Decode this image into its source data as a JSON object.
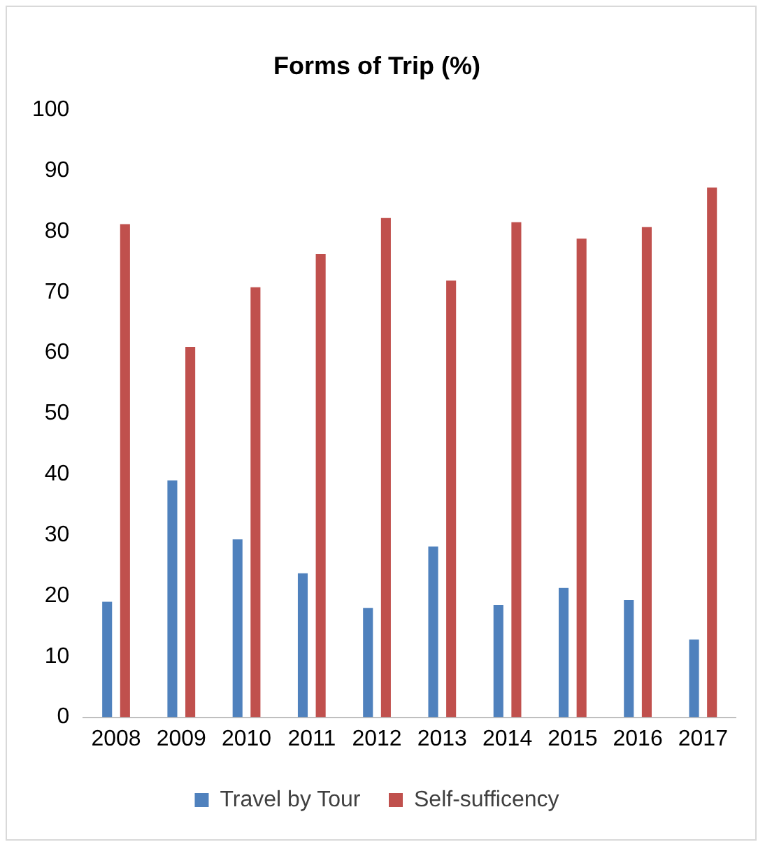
{
  "chart_data": {
    "type": "bar",
    "title": "Forms of Trip (%)",
    "categories": [
      "2008",
      "2009",
      "2010",
      "2011",
      "2012",
      "2013",
      "2014",
      "2015",
      "2016",
      "2017"
    ],
    "series": [
      {
        "name": "Travel by Tour",
        "color": "#4f81bd",
        "values": [
          19,
          39,
          29.3,
          23.7,
          18,
          28.1,
          18.5,
          21.3,
          19.3,
          12.8
        ]
      },
      {
        "name": "Self-sufficency",
        "color": "#c0504d",
        "values": [
          81.2,
          61,
          70.8,
          76.3,
          82.2,
          71.9,
          81.5,
          78.8,
          80.7,
          87.2
        ]
      }
    ],
    "ylim": [
      0,
      100
    ],
    "yticks": [
      0,
      10,
      20,
      30,
      40,
      50,
      60,
      70,
      80,
      90,
      100
    ],
    "grid": false,
    "legend": "bottom"
  }
}
